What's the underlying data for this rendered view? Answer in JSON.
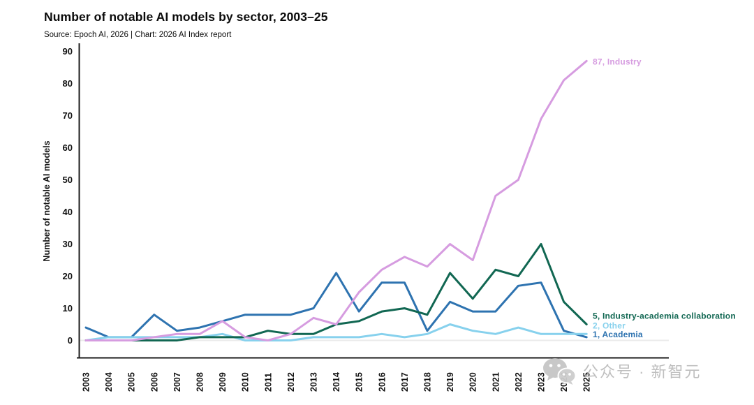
{
  "header": {
    "title": "Number of notable AI models by sector, 2003–25",
    "subtitle": "Source: Epoch AI, 2026 | Chart: 2026 AI Index report"
  },
  "chart_data": {
    "type": "line",
    "title": "Number of notable AI models by sector, 2003–25",
    "xlabel": "",
    "ylabel": "Number of notable AI models",
    "ylim": [
      0,
      90
    ],
    "yticks": [
      0,
      10,
      20,
      30,
      40,
      50,
      60,
      70,
      80,
      90
    ],
    "grid": "off (faint line at y=0 only)",
    "legend_position": "end-of-line labels at right",
    "x": [
      "2003",
      "2004",
      "2005",
      "2006",
      "2007",
      "2008",
      "2009",
      "2010",
      "2011",
      "2012",
      "2013",
      "2014",
      "2015",
      "2016",
      "2017",
      "2018",
      "2019",
      "2020",
      "2021",
      "2022",
      "2023",
      "2024",
      "2025"
    ],
    "series": [
      {
        "name": "Industry",
        "color": "#d69ce0",
        "end_label": "87, Industry",
        "values": [
          0,
          0,
          0,
          1,
          2,
          2,
          6,
          1,
          0,
          2,
          7,
          5,
          15,
          22,
          26,
          23,
          30,
          25,
          45,
          50,
          69,
          81,
          87
        ]
      },
      {
        "name": "Academia",
        "color": "#2e73b0",
        "end_label": "1, Academia",
        "values": [
          4,
          1,
          1,
          8,
          3,
          4,
          6,
          8,
          8,
          8,
          10,
          21,
          9,
          18,
          18,
          3,
          12,
          9,
          9,
          17,
          18,
          3,
          1
        ]
      },
      {
        "name": "Industry-academia collaboration",
        "color": "#116752",
        "end_label": "5, Industry-academia collaboration",
        "values": [
          0,
          0,
          0,
          0,
          0,
          1,
          1,
          1,
          3,
          2,
          2,
          5,
          6,
          9,
          10,
          8,
          21,
          13,
          22,
          20,
          30,
          12,
          5
        ]
      },
      {
        "name": "Other",
        "color": "#87d1ed",
        "end_label": "2, Other",
        "values": [
          0,
          1,
          1,
          1,
          1,
          1,
          2,
          0,
          0,
          0,
          1,
          1,
          1,
          2,
          1,
          2,
          5,
          3,
          2,
          4,
          2,
          2,
          2
        ]
      }
    ],
    "axis_color": "#1c1c1c",
    "zero_line_color": "#ebebeb"
  },
  "watermark": {
    "icon": "wechat-icon",
    "text": "公众号 · 新智元"
  }
}
